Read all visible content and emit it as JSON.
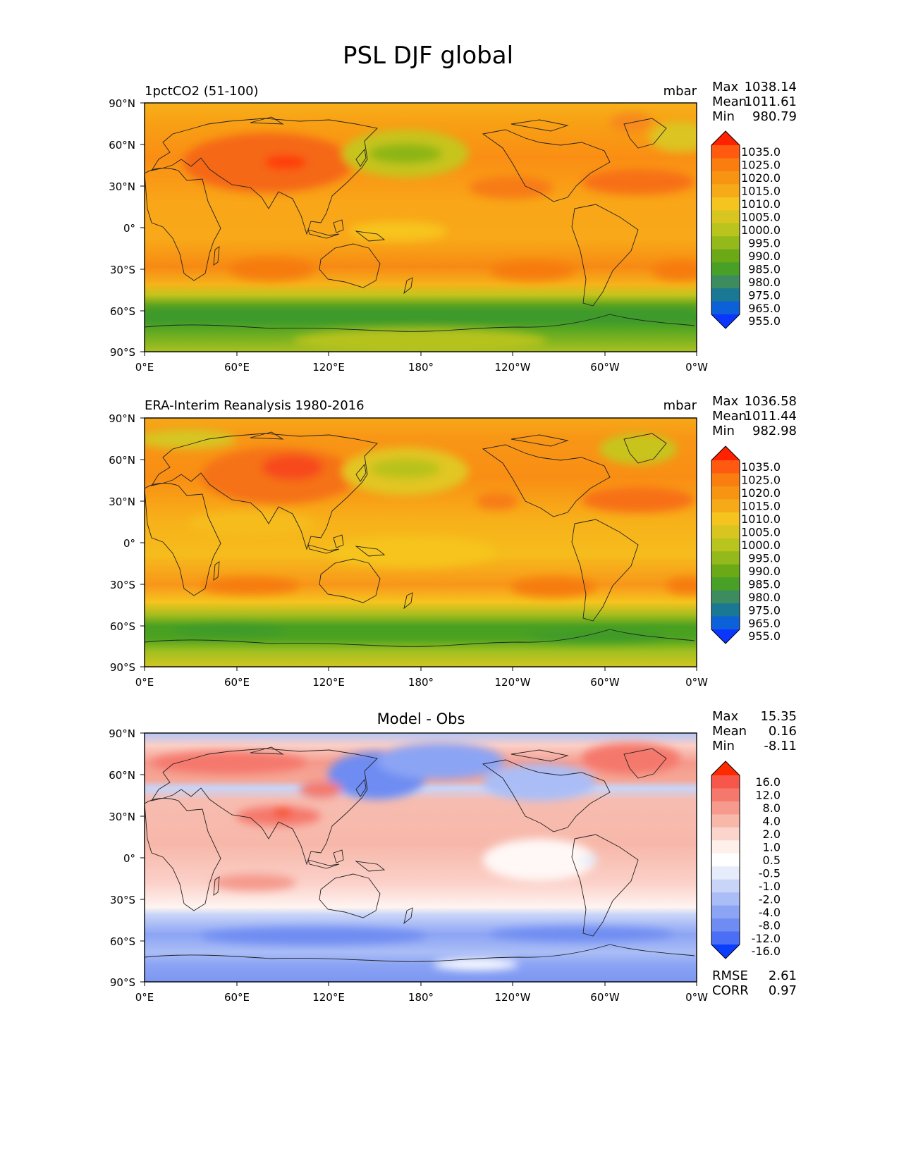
{
  "title": "PSL DJF global",
  "x_ticks": [
    "0°E",
    "60°E",
    "120°E",
    "180°",
    "120°W",
    "60°W",
    "0°W"
  ],
  "y_ticks": [
    "90°N",
    "60°N",
    "30°N",
    "0°",
    "30°S",
    "60°S",
    "90°S"
  ],
  "units": "mbar",
  "panels": [
    {
      "label": "1pctCO2 (51-100)",
      "units": "mbar",
      "stats": [
        {
          "name": "Max",
          "value": "1038.14"
        },
        {
          "name": "Mean",
          "value": "1011.61"
        },
        {
          "name": "Min",
          "value": "980.79"
        }
      ]
    },
    {
      "label": "ERA-Interim Reanalysis 1980-2016",
      "units": "mbar",
      "stats": [
        {
          "name": "Max",
          "value": "1036.58"
        },
        {
          "name": "Mean",
          "value": "1011.44"
        },
        {
          "name": "Min",
          "value": "982.98"
        }
      ]
    },
    {
      "label": "Model - Obs",
      "units": "",
      "stats": [
        {
          "name": "Max",
          "value": "15.35"
        },
        {
          "name": "Mean",
          "value": "0.16"
        },
        {
          "name": "Min",
          "value": "-8.11"
        }
      ],
      "metrics": [
        {
          "name": "RMSE",
          "value": "2.61"
        },
        {
          "name": "CORR",
          "value": "0.97"
        }
      ]
    }
  ],
  "colorbar_abs": {
    "labels": [
      "1035.0",
      "1025.0",
      "1020.0",
      "1015.0",
      "1010.0",
      "1005.0",
      "1000.0",
      "995.0",
      "990.0",
      "985.0",
      "980.0",
      "975.0",
      "965.0",
      "955.0"
    ],
    "colors": [
      "#ff2200",
      "#ff5a10",
      "#fa7d10",
      "#f79412",
      "#f7aa17",
      "#f5c41e",
      "#d8c520",
      "#b9c41e",
      "#93b91a",
      "#6ba917",
      "#48a027",
      "#3c8c60",
      "#1a7894",
      "#0c60d8",
      "#0a36ff"
    ]
  },
  "colorbar_diff": {
    "labels": [
      "16.0",
      "12.0",
      "8.0",
      "4.0",
      "2.0",
      "1.0",
      "0.5",
      "-0.5",
      "-1.0",
      "-2.0",
      "-4.0",
      "-8.0",
      "-12.0",
      "-16.0"
    ],
    "colors": [
      "#ff2a00",
      "#f7564a",
      "#f5786c",
      "#f59a8c",
      "#f7b8aa",
      "#fbd4cc",
      "#fff0ec",
      "#ffffff",
      "#e6ecfa",
      "#c8d4f8",
      "#aabdf6",
      "#8ca4f4",
      "#6e8cf2",
      "#4a6ef5",
      "#0b3dff"
    ]
  }
}
